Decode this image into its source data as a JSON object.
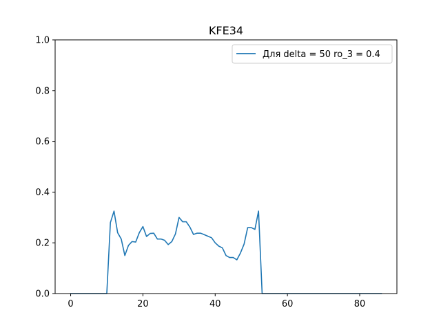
{
  "chart_data": {
    "type": "line",
    "title": "KFE34",
    "xlabel": "",
    "ylabel": "",
    "xlim": [
      -4.3,
      90.3
    ],
    "ylim": [
      0.0,
      1.0
    ],
    "xticks": [
      0,
      20,
      40,
      60,
      80
    ],
    "yticks": [
      0.0,
      0.2,
      0.4,
      0.6,
      0.8,
      1.0
    ],
    "xtick_labels": [
      "0",
      "20",
      "40",
      "60",
      "80"
    ],
    "ytick_labels": [
      "0.0",
      "0.2",
      "0.4",
      "0.6",
      "0.8",
      "1.0"
    ],
    "grid": false,
    "legend_position": "top-right",
    "series": [
      {
        "name": "Для delta = 50 ro_3 = 0.4",
        "color": "#1f77b4",
        "x": [
          0,
          1,
          2,
          3,
          4,
          5,
          6,
          7,
          8,
          9,
          10,
          11,
          12,
          13,
          14,
          15,
          16,
          17,
          18,
          19,
          20,
          21,
          22,
          23,
          24,
          25,
          26,
          27,
          28,
          29,
          30,
          31,
          32,
          33,
          34,
          35,
          36,
          37,
          38,
          39,
          40,
          41,
          42,
          43,
          44,
          45,
          46,
          47,
          48,
          49,
          50,
          51,
          52,
          53,
          54,
          55,
          56,
          57,
          58,
          59,
          60,
          61,
          62,
          63,
          64,
          65,
          66,
          67,
          68,
          69,
          70,
          71,
          72,
          73,
          74,
          75,
          76,
          77,
          78,
          79,
          80,
          81,
          82,
          83,
          84,
          85,
          86
        ],
        "y": [
          0,
          0,
          0,
          0,
          0,
          0,
          0,
          0,
          0,
          0,
          0,
          0.28,
          0.325,
          0.24,
          0.215,
          0.15,
          0.19,
          0.205,
          0.203,
          0.24,
          0.264,
          0.225,
          0.237,
          0.238,
          0.215,
          0.215,
          0.21,
          0.193,
          0.205,
          0.235,
          0.3,
          0.283,
          0.283,
          0.262,
          0.233,
          0.238,
          0.238,
          0.232,
          0.226,
          0.22,
          0.2,
          0.187,
          0.18,
          0.15,
          0.142,
          0.142,
          0.133,
          0.16,
          0.195,
          0.26,
          0.26,
          0.253,
          0.325,
          0,
          0,
          0,
          0,
          0,
          0,
          0,
          0,
          0,
          0,
          0,
          0,
          0,
          0,
          0,
          0,
          0,
          0,
          0,
          0,
          0,
          0,
          0,
          0,
          0,
          0,
          0,
          0,
          0,
          0,
          0,
          0,
          0,
          0
        ]
      }
    ]
  }
}
